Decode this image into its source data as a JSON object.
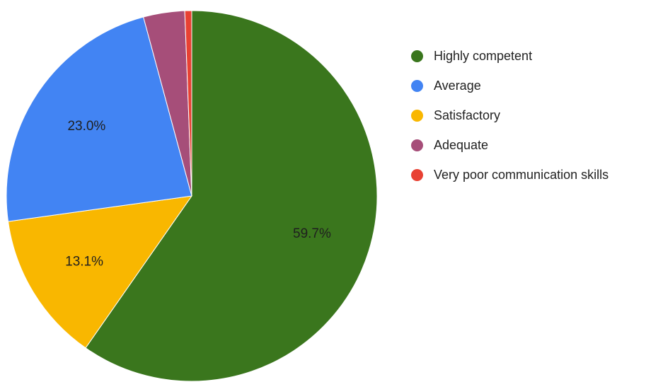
{
  "chart_data": {
    "type": "pie",
    "series": [
      {
        "name": "Highly competent",
        "value": 59.7,
        "color": "#3a761d",
        "label": "59.7%"
      },
      {
        "name": "Satisfactory",
        "value": 13.1,
        "color": "#f9b700",
        "label": "13.1%"
      },
      {
        "name": "Average",
        "value": 23.0,
        "color": "#4284f3",
        "label": "23.0%"
      },
      {
        "name": "Adequate",
        "value": 3.6,
        "color": "#a64e79",
        "label": ""
      },
      {
        "name": "Very poor communication skills",
        "value": 0.6,
        "color": "#e84133",
        "label": ""
      }
    ],
    "legend": {
      "placement": "right",
      "order": [
        "Highly competent",
        "Average",
        "Satisfactory",
        "Adequate",
        "Very poor communication skills"
      ]
    }
  }
}
